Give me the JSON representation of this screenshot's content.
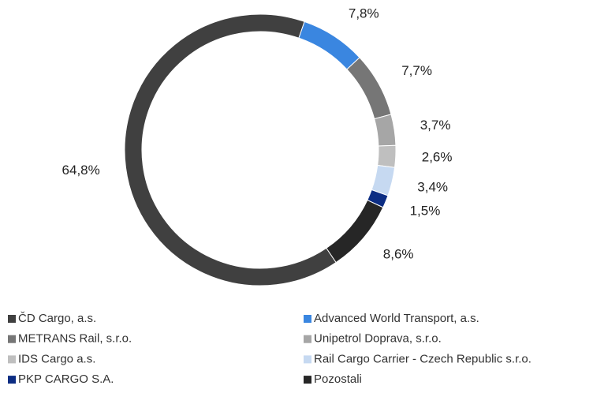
{
  "chart_data": {
    "type": "donut",
    "categories": [
      "ČD Cargo, a.s.",
      "Advanced World Transport, a.s.",
      "METRANS Rail, s.r.o.",
      "Unipetrol Doprava, s.r.o.",
      "IDS Cargo a.s.",
      "Rail Cargo Carrier - Czech Republic s.r.o.",
      "PKP CARGO S.A.",
      "Pozostali"
    ],
    "values": [
      64.8,
      7.8,
      7.7,
      3.7,
      2.6,
      3.4,
      1.5,
      8.6
    ],
    "value_labels": [
      "64,8%",
      "7,8%",
      "7,7%",
      "3,7%",
      "2,6%",
      "3,4%",
      "1,5%",
      "8,6%"
    ],
    "colors": [
      "#404040",
      "#3a86e0",
      "#767676",
      "#a6a6a6",
      "#bfbfbf",
      "#c6d9f1",
      "#0c2d83",
      "#262626"
    ],
    "legend": "bottom"
  }
}
